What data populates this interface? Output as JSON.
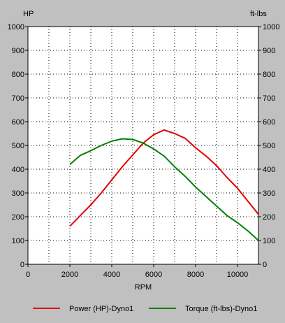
{
  "chart_data": {
    "type": "line",
    "left_axis_label": "HP",
    "right_axis_label": "ft-lbs",
    "xlabel": "RPM",
    "xlim": [
      0,
      11000
    ],
    "ylim": [
      0,
      1000
    ],
    "x_ticks": [
      0,
      2000,
      4000,
      6000,
      8000,
      10000
    ],
    "x_tick_labels": [
      "0",
      "2000",
      "4000",
      "6000",
      "8000",
      "10000"
    ],
    "y_ticks": [
      0,
      100,
      200,
      300,
      400,
      500,
      600,
      700,
      800,
      900,
      1000
    ],
    "y_tick_labels": [
      "0",
      "100",
      "200",
      "300",
      "400",
      "500",
      "600",
      "700",
      "800",
      "900",
      "1000"
    ],
    "grid": true,
    "legend_position": "bottom",
    "series": [
      {
        "name": "Power (HP)-Dyno1",
        "color": "#e00000",
        "x": [
          2000,
          2500,
          3000,
          3500,
          4000,
          4500,
          5000,
          5500,
          6000,
          6500,
          7000,
          7500,
          8000,
          8500,
          9000,
          9500,
          10000,
          10500,
          11000
        ],
        "y": [
          160,
          205,
          250,
          300,
          355,
          410,
          460,
          510,
          545,
          565,
          550,
          530,
          490,
          455,
          415,
          365,
          320,
          265,
          210
        ]
      },
      {
        "name": "Torque (ft-lbs)-Dyno1",
        "color": "#008000",
        "x": [
          2000,
          2500,
          3000,
          3500,
          4000,
          4500,
          5000,
          5500,
          6000,
          6500,
          7000,
          7500,
          8000,
          8500,
          9000,
          9500,
          10000,
          10500,
          11000
        ],
        "y": [
          420,
          458,
          478,
          500,
          518,
          528,
          525,
          510,
          485,
          455,
          410,
          370,
          325,
          285,
          245,
          205,
          175,
          140,
          100
        ]
      }
    ]
  }
}
